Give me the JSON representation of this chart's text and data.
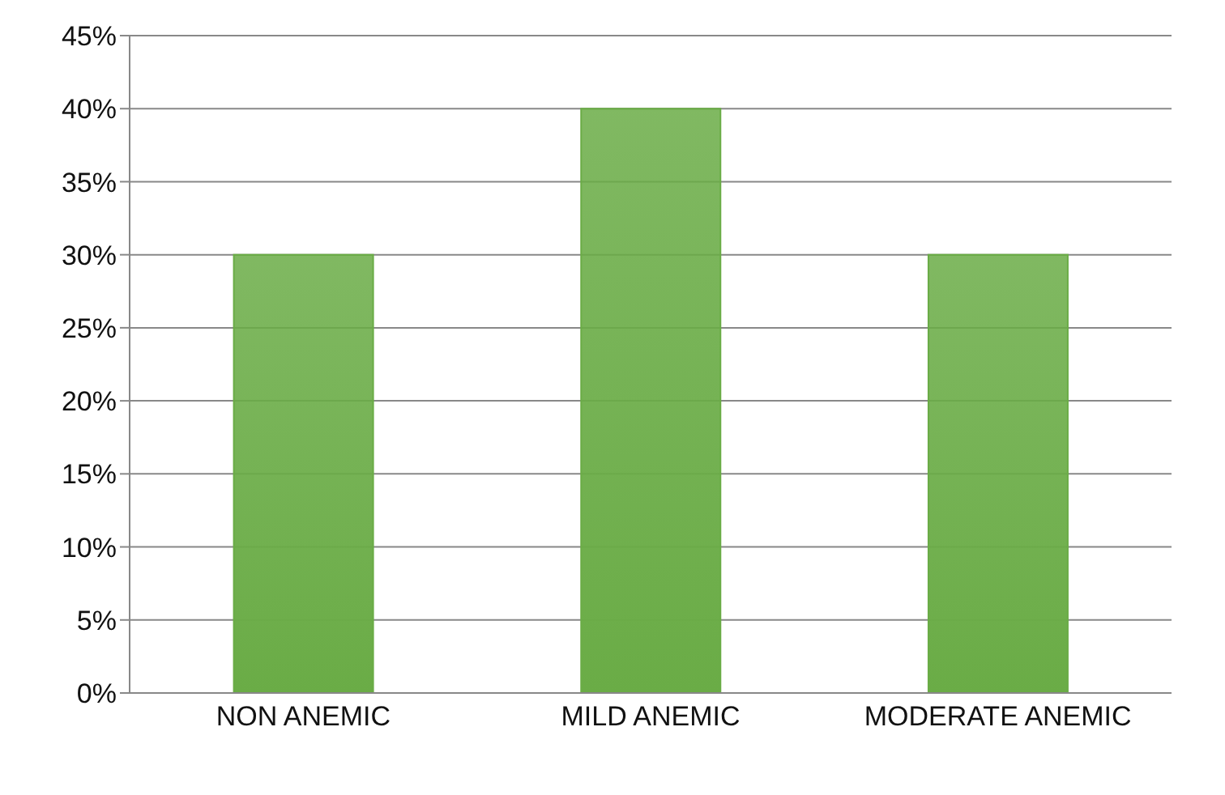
{
  "chart_data": {
    "type": "bar",
    "categories": [
      "NON ANEMIC",
      "MILD ANEMIC",
      "MODERATE ANEMIC"
    ],
    "values": [
      30,
      40,
      30
    ],
    "color": "#6aac46",
    "ylim": [
      0,
      45
    ],
    "yticks": [
      {
        "value": 0,
        "label": "0%"
      },
      {
        "value": 5,
        "label": "5%"
      },
      {
        "value": 10,
        "label": "10%"
      },
      {
        "value": 15,
        "label": "15%"
      },
      {
        "value": 20,
        "label": "20%"
      },
      {
        "value": 25,
        "label": "25%"
      },
      {
        "value": 30,
        "label": "30%"
      },
      {
        "value": 35,
        "label": "35%"
      },
      {
        "value": 40,
        "label": "40%"
      },
      {
        "value": 45,
        "label": "45%"
      }
    ],
    "grid": "y"
  }
}
